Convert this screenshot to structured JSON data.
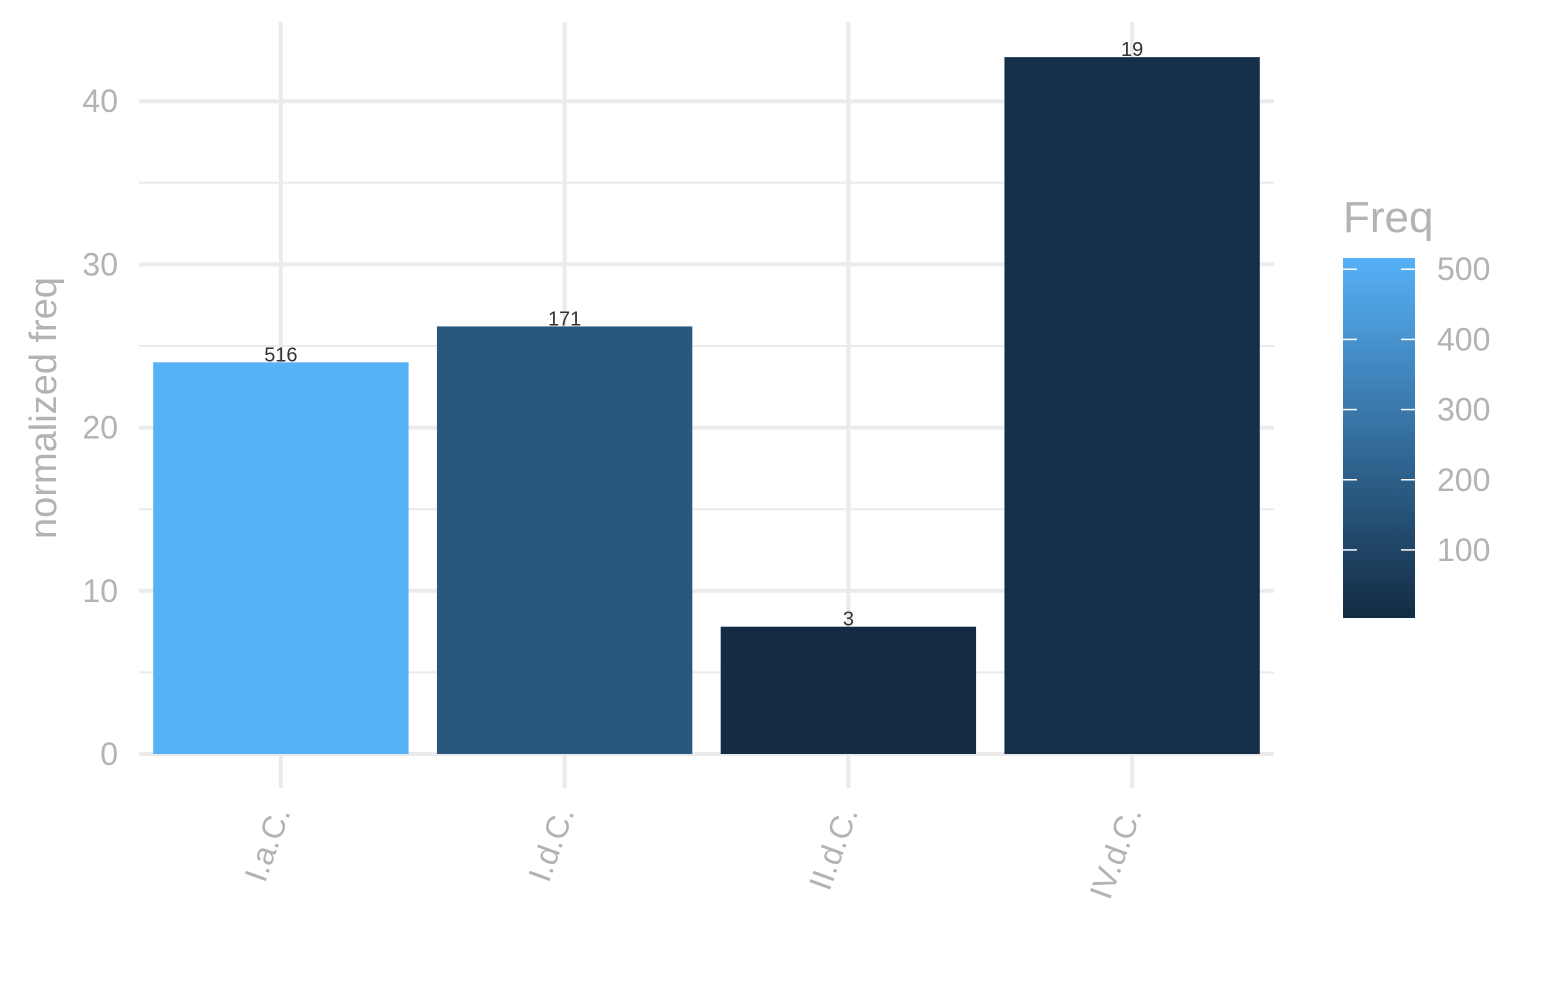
{
  "chart_data": {
    "type": "bar",
    "categories": [
      "I.a.C.",
      "I.d.C.",
      "II.d.C.",
      "IV.d.C."
    ],
    "values": [
      24.0,
      26.2,
      7.8,
      42.7
    ],
    "freq": [
      516,
      171,
      3,
      19
    ],
    "data_labels": [
      "516",
      "171",
      "3",
      "19"
    ],
    "ylabel": "normalized freq",
    "xlabel": "",
    "ylim": [
      0,
      44.5
    ],
    "yticks": [
      0,
      10,
      20,
      30,
      40
    ],
    "ytick_labels": [
      "0",
      "10",
      "20",
      "30",
      "40"
    ],
    "grid": true,
    "legend": {
      "title": "Freq",
      "position": "right",
      "range": [
        3,
        516
      ],
      "ticks": [
        100,
        200,
        300,
        400,
        500
      ],
      "tick_labels": [
        "100",
        "200",
        "300",
        "400",
        "500"
      ],
      "low_color": "#132B43",
      "high_color": "#56B1F7"
    }
  }
}
